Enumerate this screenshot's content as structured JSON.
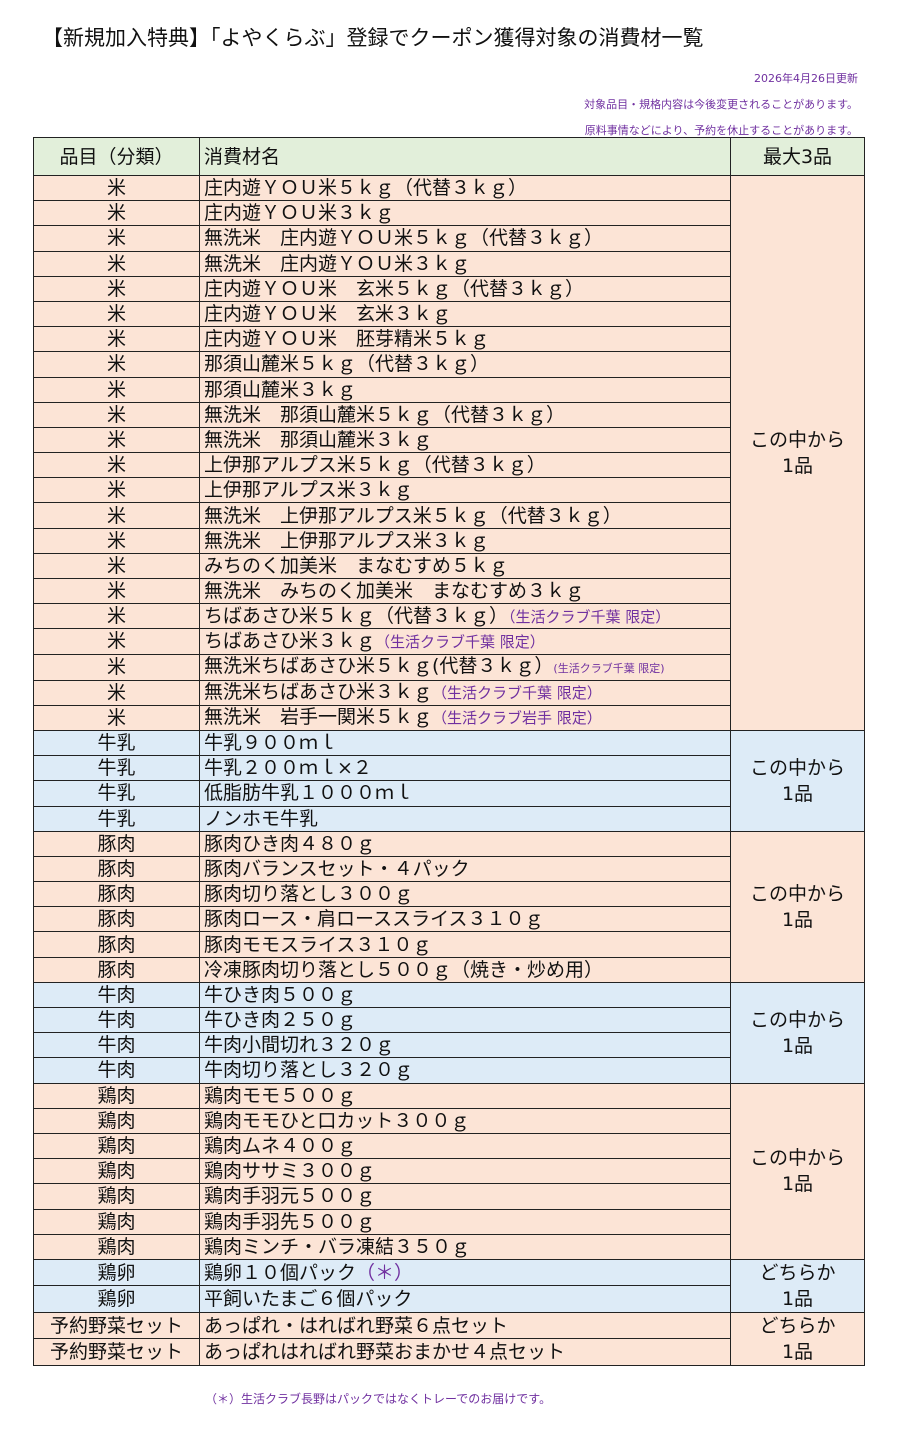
{
  "title": "【新規加入特典】「よやくらぶ」登録でクーポン獲得対象の消費材一覧",
  "notes": {
    "updated": "2026年4月26日更新",
    "line1": "対象品目・規格内容は今後変更されることがあります。",
    "line2": "原料事情などにより、予約を休止することがあります。"
  },
  "colors": {
    "peach": "#fce4d6",
    "blue": "#ddebf7",
    "header": "#e2efda",
    "accent": "#7030a0"
  },
  "table": {
    "headers": [
      "品目（分類）",
      "消費材名",
      "最大3品"
    ],
    "groups": [
      {
        "color": "peach",
        "limit": "この中から\n1品",
        "rows": [
          {
            "cat": "米",
            "name": "庄内遊ＹＯＵ米５ｋｇ（代替３ｋｇ）"
          },
          {
            "cat": "米",
            "name": "庄内遊ＹＯＵ米３ｋｇ"
          },
          {
            "cat": "米",
            "name": "無洗米　庄内遊ＹＯＵ米５ｋｇ（代替３ｋｇ）"
          },
          {
            "cat": "米",
            "name": "無洗米　庄内遊ＹＯＵ米３ｋｇ"
          },
          {
            "cat": "米",
            "name": "庄内遊ＹＯＵ米　玄米５ｋｇ（代替３ｋｇ）"
          },
          {
            "cat": "米",
            "name": "庄内遊ＹＯＵ米　玄米３ｋｇ"
          },
          {
            "cat": "米",
            "name": "庄内遊ＹＯＵ米　胚芽精米５ｋｇ"
          },
          {
            "cat": "米",
            "name": "那須山麓米５ｋｇ（代替３ｋｇ）"
          },
          {
            "cat": "米",
            "name": "那須山麓米３ｋｇ"
          },
          {
            "cat": "米",
            "name": "無洗米　那須山麓米５ｋｇ（代替３ｋｇ）"
          },
          {
            "cat": "米",
            "name": "無洗米　那須山麓米３ｋｇ"
          },
          {
            "cat": "米",
            "name": "上伊那アルプス米５ｋｇ（代替３ｋｇ）"
          },
          {
            "cat": "米",
            "name": "上伊那アルプス米３ｋｇ"
          },
          {
            "cat": "米",
            "name": "無洗米　上伊那アルプス米５ｋｇ（代替３ｋｇ）"
          },
          {
            "cat": "米",
            "name": "無洗米　上伊那アルプス米３ｋｇ"
          },
          {
            "cat": "米",
            "name": "みちのく加美米　まなむすめ５ｋｇ"
          },
          {
            "cat": "米",
            "name": "無洗米　みちのく加美米　まなむすめ３ｋｇ"
          },
          {
            "cat": "米",
            "name": "ちばあさひ米５ｋｇ（代替３ｋｇ）",
            "note": "（生活クラブ千葉 限定）"
          },
          {
            "cat": "米",
            "name": "ちばあさひ米３ｋｇ",
            "note": "（生活クラブ千葉 限定）"
          },
          {
            "cat": "米",
            "name": "無洗米ちばあさひ米５ｋｇ(代替３ｋｇ）",
            "note": "(生活クラブ千葉 限定)",
            "small": true
          },
          {
            "cat": "米",
            "name": "無洗米ちばあさひ米３ｋｇ",
            "note": "（生活クラブ千葉 限定）"
          },
          {
            "cat": "米",
            "name": "無洗米　岩手一関米５ｋｇ",
            "note": "（生活クラブ岩手 限定）"
          }
        ]
      },
      {
        "color": "blue",
        "limit": "この中から\n1品",
        "rows": [
          {
            "cat": "牛乳",
            "name": "牛乳９００ｍｌ"
          },
          {
            "cat": "牛乳",
            "name": "牛乳２００ｍｌ×２"
          },
          {
            "cat": "牛乳",
            "name": "低脂肪牛乳１０００ｍｌ"
          },
          {
            "cat": "牛乳",
            "name": "ノンホモ牛乳"
          }
        ]
      },
      {
        "color": "peach",
        "limit": "この中から\n1品",
        "rows": [
          {
            "cat": "豚肉",
            "name": "豚肉ひき肉４８０ｇ"
          },
          {
            "cat": "豚肉",
            "name": "豚肉バランスセット・４パック"
          },
          {
            "cat": "豚肉",
            "name": "豚肉切り落とし３００ｇ"
          },
          {
            "cat": "豚肉",
            "name": "豚肉ロース・肩ローススライス３１０ｇ"
          },
          {
            "cat": "豚肉",
            "name": "豚肉モモスライス３１０ｇ"
          },
          {
            "cat": "豚肉",
            "name": "冷凍豚肉切り落とし５００ｇ（焼き・炒め用）"
          }
        ]
      },
      {
        "color": "blue",
        "limit": "この中から\n1品",
        "rows": [
          {
            "cat": "牛肉",
            "name": "牛ひき肉５００ｇ"
          },
          {
            "cat": "牛肉",
            "name": "牛ひき肉２５０ｇ"
          },
          {
            "cat": "牛肉",
            "name": "牛肉小間切れ３２０ｇ"
          },
          {
            "cat": "牛肉",
            "name": "牛肉切り落とし３２０ｇ"
          }
        ]
      },
      {
        "color": "peach",
        "limit": "この中から\n1品",
        "rows": [
          {
            "cat": "鶏肉",
            "name": "鶏肉モモ５００ｇ"
          },
          {
            "cat": "鶏肉",
            "name": "鶏肉モモひと口カット３００ｇ"
          },
          {
            "cat": "鶏肉",
            "name": "鶏肉ムネ４００ｇ"
          },
          {
            "cat": "鶏肉",
            "name": "鶏肉ササミ３００ｇ"
          },
          {
            "cat": "鶏肉",
            "name": "鶏肉手羽元５００ｇ"
          },
          {
            "cat": "鶏肉",
            "name": "鶏肉手羽先５００ｇ"
          },
          {
            "cat": "鶏肉",
            "name": "鶏肉ミンチ・バラ凍結３５０ｇ"
          }
        ]
      },
      {
        "color": "blue",
        "limit": "どちらか\n1品",
        "rows": [
          {
            "cat": "鶏卵",
            "name": "鶏卵１０個パック",
            "note": "（＊）",
            "big": true
          },
          {
            "cat": "鶏卵",
            "name": "平飼いたまご６個パック"
          }
        ]
      },
      {
        "color": "peach",
        "limit": "どちらか\n1品",
        "rows": [
          {
            "cat": "予約野菜セット",
            "name": "あっぱれ・はればれ野菜６点セット"
          },
          {
            "cat": "予約野菜セット",
            "name": "あっぱれはればれ野菜おまかせ４点セット"
          }
        ]
      }
    ]
  },
  "footnote": "（＊）生活クラブ長野はパックではなくトレーでのお届けです。"
}
